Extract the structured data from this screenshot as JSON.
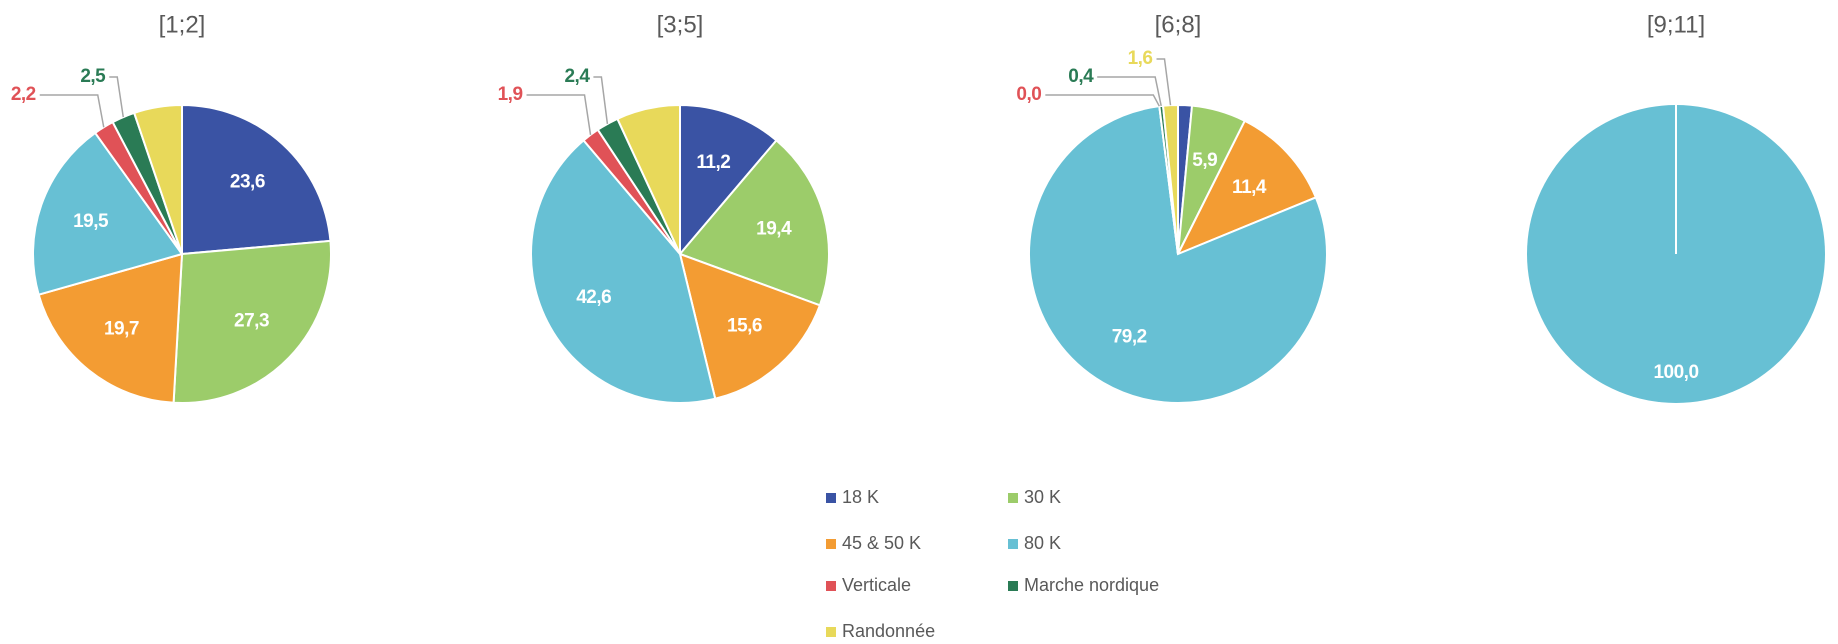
{
  "chart_data": [
    {
      "type": "pie",
      "title": "[1;2]",
      "categories": [
        "18 K",
        "30 K",
        "45 & 50 K",
        "80 K",
        "Verticale",
        "Marche nordique",
        "Randonnée"
      ],
      "values": [
        23.6,
        27.3,
        19.7,
        19.5,
        2.2,
        2.5,
        5.2
      ],
      "value_labels": [
        "23,6",
        "27,3",
        "19,7",
        "19,5",
        "2,2",
        "2,5",
        null
      ],
      "colors": [
        "#3a53a4",
        "#9ccc6a",
        "#f39c33",
        "#67c0d4",
        "#e05257",
        "#2a7b55",
        "#e8d95a"
      ]
    },
    {
      "type": "pie",
      "title": "[3;5]",
      "categories": [
        "18 K",
        "30 K",
        "45 & 50 K",
        "80 K",
        "Verticale",
        "Marche nordique",
        "Randonnée"
      ],
      "values": [
        11.2,
        19.4,
        15.6,
        42.6,
        1.9,
        2.4,
        6.9
      ],
      "value_labels": [
        "11,2",
        "19,4",
        "15,6",
        "42,6",
        "1,9",
        "2,4",
        null
      ],
      "colors": [
        "#3a53a4",
        "#9ccc6a",
        "#f39c33",
        "#67c0d4",
        "#e05257",
        "#2a7b55",
        "#e8d95a"
      ]
    },
    {
      "type": "pie",
      "title": "[6;8]",
      "categories": [
        "18 K",
        "30 K",
        "45 & 50 K",
        "80 K",
        "Verticale",
        "Marche nordique",
        "Randonnée"
      ],
      "values": [
        1.5,
        5.9,
        11.4,
        79.2,
        0.0,
        0.4,
        1.6
      ],
      "value_labels": [
        null,
        "5,9",
        "11,4",
        "79,2",
        "0,0",
        "0,4",
        "1,6"
      ],
      "colors": [
        "#3a53a4",
        "#9ccc6a",
        "#f39c33",
        "#67c0d4",
        "#e05257",
        "#2a7b55",
        "#e8d95a"
      ]
    },
    {
      "type": "pie",
      "title": "[9;11]",
      "categories": [
        "18 K",
        "30 K",
        "45 & 50 K",
        "80 K",
        "Verticale",
        "Marche nordique",
        "Randonnée"
      ],
      "values": [
        0,
        0,
        0,
        100,
        0,
        0,
        0
      ],
      "value_labels": [
        null,
        null,
        null,
        "100,0",
        null,
        null,
        null
      ],
      "colors": [
        "#3a53a4",
        "#9ccc6a",
        "#f39c33",
        "#67c0d4",
        "#e05257",
        "#2a7b55",
        "#e8d95a"
      ]
    }
  ]
}
